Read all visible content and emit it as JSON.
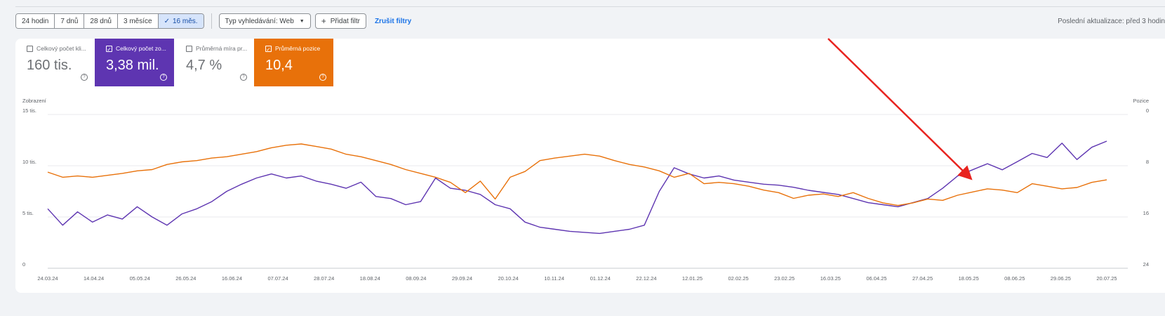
{
  "toolbar": {
    "ranges": [
      "24 hodin",
      "7 dnů",
      "28 dnů",
      "3 měsíce",
      "16 měs."
    ],
    "selected_range_check": "✓",
    "search_type": "Typ vyhledávání: Web",
    "add_filter": "Přidat filtr",
    "clear_filters": "Zrušit filtry",
    "last_update": "Poslední aktualizace: před 3 hodin"
  },
  "metrics": [
    {
      "label": "Celkový počet kli...",
      "value": "160 tis.",
      "checked": false
    },
    {
      "label": "Celkový počet zo...",
      "value": "3,38 mil.",
      "checked": true,
      "color": "#5e35b1"
    },
    {
      "label": "Průměrná míra pr...",
      "value": "4,7 %",
      "checked": false
    },
    {
      "label": "Průměrná pozice",
      "value": "10,4",
      "checked": true,
      "color": "#e8710a"
    }
  ],
  "chart_data": {
    "type": "line",
    "left_axis_label": "Zobrazení",
    "right_axis_label": "Pozice",
    "left_ticks": [
      "15 tis.",
      "10 tis.",
      "5 tis.",
      "0"
    ],
    "left_ylim": [
      0,
      15000
    ],
    "right_ticks": [
      "0",
      "8",
      "16",
      "24"
    ],
    "right_ylim": [
      0,
      24
    ],
    "right_axis_reversed": true,
    "grid": true,
    "x_labels": [
      "24.03.24",
      "14.04.24",
      "05.05.24",
      "26.05.24",
      "16.06.24",
      "07.07.24",
      "28.07.24",
      "18.08.24",
      "08.09.24",
      "29.09.24",
      "20.10.24",
      "10.11.24",
      "01.12.24",
      "22.12.24",
      "12.01.25",
      "02.02.25",
      "23.02.25",
      "16.03.25",
      "06.04.25",
      "27.04.25",
      "18.05.25",
      "08.06.25",
      "29.06.25",
      "20.07.25"
    ],
    "series": [
      {
        "name": "Celkový počet zobrazení",
        "axis": "left",
        "color": "#5e35b1",
        "values": [
          5800,
          4200,
          5500,
          4500,
          5200,
          4800,
          6000,
          5000,
          4200,
          5300,
          5800,
          6500,
          7500,
          8200,
          8800,
          9200,
          8800,
          9000,
          8500,
          8200,
          7800,
          8400,
          7000,
          6800,
          6200,
          6500,
          8800,
          7800,
          7600,
          7200,
          6200,
          5800,
          4500,
          4000,
          3800,
          3600,
          3500,
          3400,
          3600,
          3800,
          4200,
          7500,
          9800,
          9200,
          8800,
          9000,
          8600,
          8400,
          8200,
          8100,
          7900,
          7600,
          7400,
          7200,
          6800,
          6400,
          6200,
          6000,
          6400,
          6800,
          7800,
          9000,
          9600,
          10200,
          9600,
          10400,
          11200,
          10800,
          12200,
          10600,
          11800,
          12400
        ]
      },
      {
        "name": "Průměrná pozice",
        "axis": "right",
        "color": "#e8710a",
        "values": [
          9,
          9.8,
          9.6,
          9.8,
          9.5,
          9.2,
          8.8,
          8.6,
          7.8,
          7.4,
          7.2,
          6.8,
          6.6,
          6.2,
          5.8,
          5.2,
          4.8,
          4.6,
          5,
          5.4,
          6.2,
          6.6,
          7.2,
          7.8,
          8.6,
          9.2,
          9.8,
          10.6,
          12.2,
          10.4,
          13.2,
          9.8,
          8.9,
          7.2,
          6.8,
          6.5,
          6.2,
          6.5,
          7.2,
          7.8,
          8.2,
          8.8,
          9.8,
          9.2,
          10.8,
          10.6,
          10.8,
          11.2,
          11.8,
          12.2,
          13.1,
          12.6,
          12.4,
          12.8,
          12.2,
          13.1,
          13.8,
          14.2,
          13.8,
          13.2,
          13.4,
          12.6,
          12.1,
          11.6,
          11.8,
          12.2,
          10.8,
          11.2,
          11.6,
          11.4,
          10.6,
          10.2
        ]
      }
    ]
  }
}
